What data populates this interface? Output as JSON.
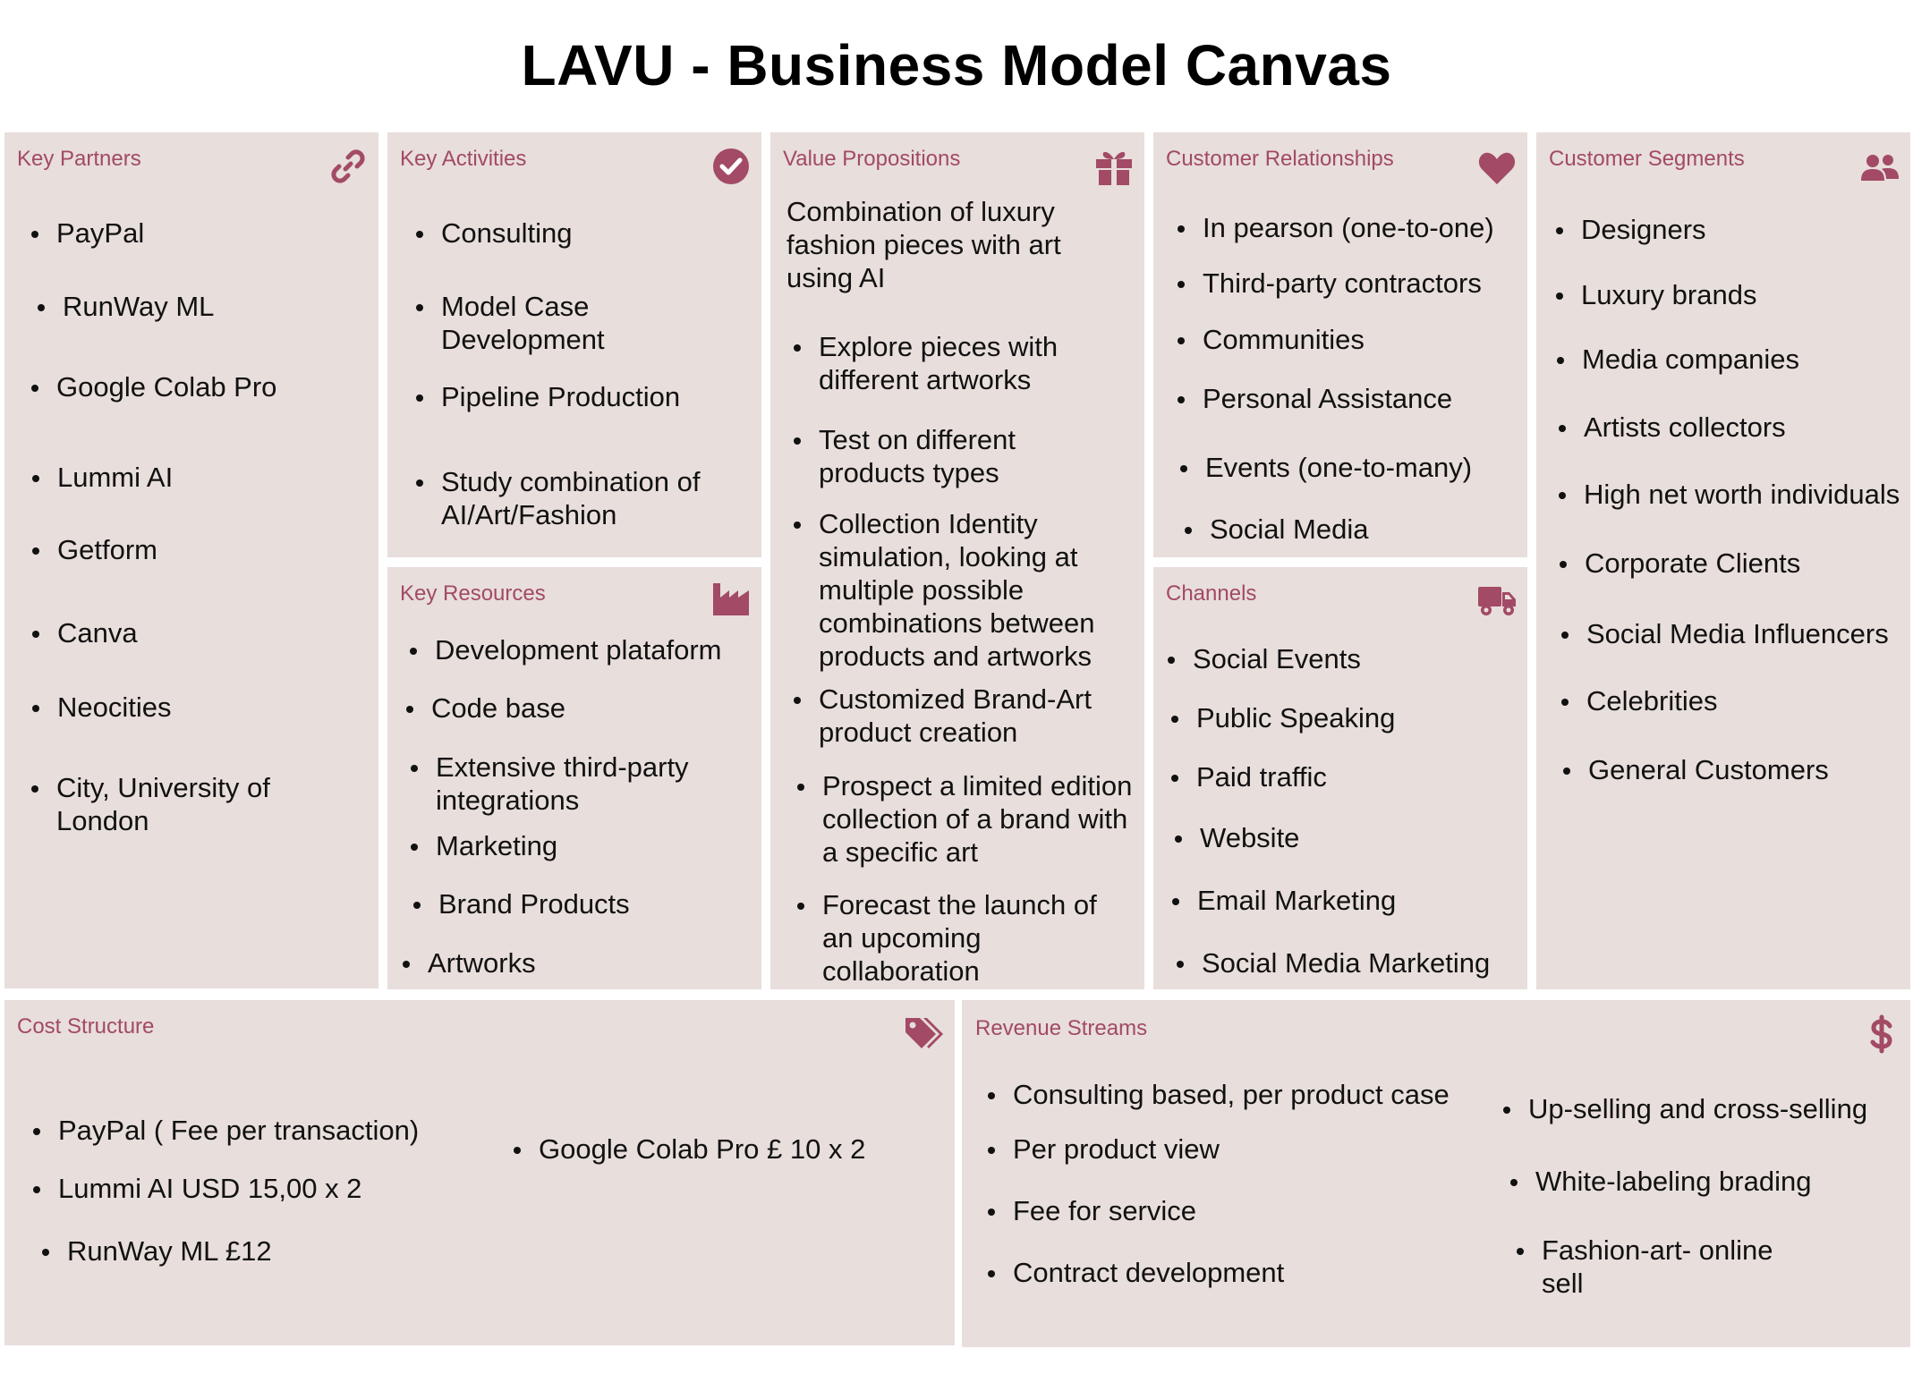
{
  "title": "LAVU - Business Model Canvas",
  "colors": {
    "box_bg": "#e8dedb",
    "accent": "#a24a66"
  },
  "key_partners": {
    "label": "Key Partners",
    "icon": "link-icon",
    "items": [
      "PayPal",
      "RunWay ML",
      "Google Colab Pro",
      "Lummi AI",
      "Getform",
      "Canva",
      "Neocities",
      "City, University of London"
    ]
  },
  "key_activities": {
    "label": "Key Activities",
    "icon": "check-circle-icon",
    "items": [
      "Consulting",
      "Model Case Development",
      "Pipeline Production",
      "Study combination of AI/Art/Fashion"
    ]
  },
  "key_resources": {
    "label": "Key Resources",
    "icon": "factory-icon",
    "items": [
      "Development plataform",
      "Code base",
      "Extensive third-party integrations",
      "Marketing",
      "Brand Products",
      "Artworks"
    ]
  },
  "value_propositions": {
    "label": "Value Propositions",
    "icon": "gift-icon",
    "intro": "Combination of luxury fashion pieces with art using AI",
    "items": [
      "Explore pieces with different artworks",
      "Test on different products types",
      "Collection Identity simulation, looking at multiple possible combinations between products and artworks",
      "Customized  Brand-Art product creation",
      "Prospect a limited edition collection of a brand with a specific art",
      "Forecast the launch of an upcoming collaboration"
    ]
  },
  "customer_relationships": {
    "label": "Customer Relationships",
    "icon": "heart-icon",
    "items": [
      "In pearson (one-to-one)",
      "Third-party contractors",
      "Communities",
      "Personal Assistance",
      "Events (one-to-many)",
      "Social Media"
    ]
  },
  "channels": {
    "label": "Channels",
    "icon": "truck-icon",
    "items": [
      "Social Events",
      "Public Speaking",
      "Paid traffic",
      "Website",
      "Email Marketing",
      "Social Media Marketing"
    ]
  },
  "customer_segments": {
    "label": "Customer Segments",
    "icon": "users-icon",
    "items": [
      "Designers",
      "Luxury brands",
      "Media companies",
      "Artists collectors",
      "High net worth individuals",
      "Corporate Clients",
      "Social Media Influencers",
      "Celebrities",
      "General Customers"
    ]
  },
  "cost_structure": {
    "label": "Cost Structure",
    "icon": "tags-icon",
    "items": [
      "PayPal ( Fee per transaction)",
      "Lummi AI  USD 15,00 x 2",
      "RunWay ML £12",
      "Google Colab Pro £ 10 x 2"
    ]
  },
  "revenue_streams": {
    "label": "Revenue Streams",
    "icon": "dollar-icon",
    "items": [
      "Consulting based, per product case",
      "Per product view",
      "Fee for service",
      "Contract development",
      "Up-selling and cross-selling",
      "White-labeling brading",
      "Fashion-art- online sell"
    ]
  }
}
